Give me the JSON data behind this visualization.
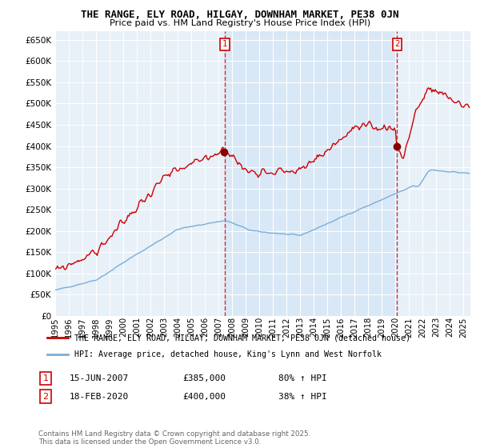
{
  "title": "THE RANGE, ELY ROAD, HILGAY, DOWNHAM MARKET, PE38 0JN",
  "subtitle": "Price paid vs. HM Land Registry's House Price Index (HPI)",
  "red_label": "THE RANGE, ELY ROAD, HILGAY, DOWNHAM MARKET, PE38 0JN (detached house)",
  "blue_label": "HPI: Average price, detached house, King's Lynn and West Norfolk",
  "footnote": "Contains HM Land Registry data © Crown copyright and database right 2025.\nThis data is licensed under the Open Government Licence v3.0.",
  "sale1_date": "15-JUN-2007",
  "sale1_price": "£385,000",
  "sale1_hpi": "80% ↑ HPI",
  "sale1_x": 2007.45,
  "sale2_date": "18-FEB-2020",
  "sale2_price": "£400,000",
  "sale2_hpi": "38% ↑ HPI",
  "sale2_x": 2020.12,
  "ylim": [
    0,
    670000
  ],
  "xlim_start": 1995.0,
  "xlim_end": 2025.5,
  "background_color": "#ffffff",
  "plot_bg_color": "#e8f0f8",
  "grid_color": "#ffffff",
  "red_color": "#cc0000",
  "blue_color": "#7aaed6",
  "shade_color": "#d0e4f5"
}
